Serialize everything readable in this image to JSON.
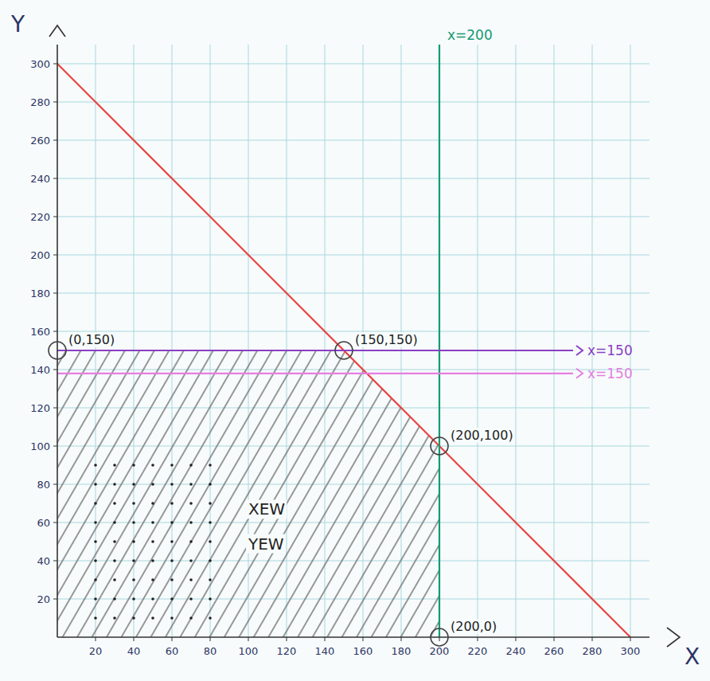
{
  "chart_data": {
    "type": "line",
    "x_label": "X",
    "y_label": "Y",
    "xlim": [
      0,
      310
    ],
    "ylim": [
      0,
      310
    ],
    "xticks": [
      20,
      40,
      60,
      80,
      100,
      120,
      140,
      160,
      180,
      200,
      220,
      240,
      260,
      280,
      300
    ],
    "yticks": [
      20,
      40,
      60,
      80,
      100,
      120,
      140,
      160,
      180,
      200,
      220,
      240,
      260,
      280,
      300
    ],
    "grid": true,
    "series": [
      {
        "color": "#e8423f",
        "x": [
          0,
          300
        ],
        "values": [
          300,
          0
        ]
      },
      {
        "name": "x=200",
        "color": "#159a74",
        "x": [
          200,
          200
        ],
        "values": [
          0,
          310
        ]
      },
      {
        "name": "x=150",
        "color": "#8a3fc4",
        "x": [
          0,
          270
        ],
        "values": [
          150,
          150
        ]
      },
      {
        "name": "x=150",
        "color": "#e57ee0",
        "x": [
          0,
          270
        ],
        "values": [
          138,
          138
        ]
      },
      {
        "type": "scatter",
        "marker": "dot",
        "color": "#222222",
        "x": [
          20,
          30,
          40,
          50,
          60,
          70,
          80,
          20,
          30,
          40,
          50,
          60,
          70,
          80,
          20,
          30,
          40,
          50,
          60,
          70,
          80,
          20,
          30,
          40,
          50,
          60,
          70,
          80,
          20,
          30,
          40,
          50,
          60,
          70,
          80,
          20,
          30,
          40,
          50,
          60,
          70,
          80,
          20,
          30,
          40,
          50,
          60,
          70,
          80,
          20,
          30,
          40,
          50,
          60,
          70,
          80,
          20,
          30,
          40,
          50,
          60,
          70,
          80
        ],
        "values": [
          10,
          10,
          10,
          10,
          10,
          10,
          10,
          20,
          20,
          20,
          20,
          20,
          20,
          20,
          30,
          30,
          30,
          30,
          30,
          30,
          30,
          40,
          40,
          40,
          40,
          40,
          40,
          40,
          50,
          50,
          50,
          50,
          50,
          50,
          50,
          60,
          60,
          60,
          60,
          60,
          60,
          60,
          70,
          70,
          70,
          70,
          70,
          70,
          70,
          80,
          80,
          80,
          80,
          80,
          80,
          80,
          90,
          90,
          90,
          90,
          90,
          90,
          90
        ]
      }
    ],
    "region": {
      "x": [
        0,
        0,
        150,
        200,
        200
      ],
      "y": [
        0,
        150,
        150,
        100,
        0
      ]
    },
    "points": [
      {
        "x": 0,
        "y": 150,
        "label": "(0,150)"
      },
      {
        "x": 150,
        "y": 150,
        "label": "(150,150)"
      },
      {
        "x": 200,
        "y": 100,
        "label": "(200,100)"
      },
      {
        "x": 200,
        "y": 0,
        "label": "(200,0)"
      }
    ],
    "annotations": [
      {
        "text": "XEW",
        "x": 100,
        "y": 64
      },
      {
        "text": "YEW",
        "x": 100,
        "y": 46
      }
    ]
  }
}
